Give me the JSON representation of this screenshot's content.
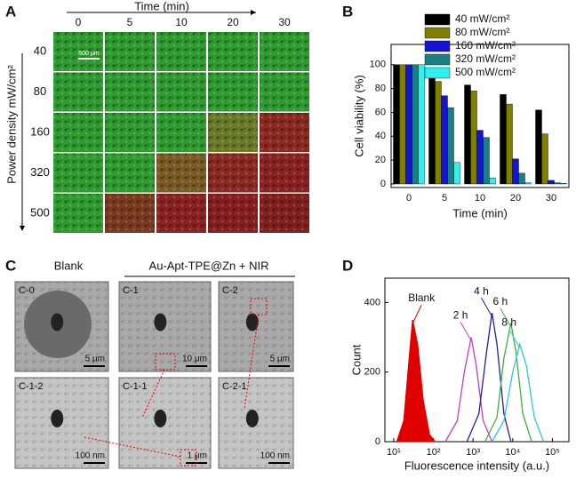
{
  "panels": {
    "A": {
      "letter": "A",
      "title": "Time (min)",
      "columns": [
        "0",
        "5",
        "10",
        "20",
        "30"
      ],
      "rows": [
        "40",
        "80",
        "160",
        "320",
        "500"
      ],
      "y_label": "Power density mW/cm²",
      "scale_bar": "500 μm",
      "cell_colors": [
        [
          "#2f9a2f",
          "#2f9a2f",
          "#2f9a2f",
          "#2f9a2f",
          "#2f9a2f"
        ],
        [
          "#2f9a2f",
          "#2f9a2f",
          "#2f9a2f",
          "#2f9a2f",
          "#2f9a2f"
        ],
        [
          "#2f9a2f",
          "#2f9a2f",
          "#2f9a2f",
          "#6a7a28",
          "#8a2a20"
        ],
        [
          "#2f9a2f",
          "#2f9a2f",
          "#7a5a25",
          "#8a2a22",
          "#8a2222"
        ],
        [
          "#2f9a2f",
          "#7a3a22",
          "#8a2222",
          "#862020",
          "#802020"
        ]
      ]
    },
    "B": {
      "letter": "B"
    },
    "C": {
      "letter": "C",
      "group_blank": "Blank",
      "group_treated": "Au-Apt-TPE@Zn + NIR",
      "images": [
        {
          "label": "C-0",
          "scale": "5 μm"
        },
        {
          "label": "C-1",
          "scale": "10 μm"
        },
        {
          "label": "C-2",
          "scale": "5 μm"
        },
        {
          "label": "C-1-2",
          "scale": "100 nm"
        },
        {
          "label": "C-1-1",
          "scale": "1 μm"
        },
        {
          "label": "C-2-1",
          "scale": "100 nm"
        }
      ]
    },
    "D": {
      "letter": "D"
    }
  },
  "chart_data": [
    {
      "type": "bar",
      "x_label": "Time (min)",
      "y_label": "Cell viability (%)",
      "categories": [
        "0",
        "5",
        "10",
        "20",
        "30"
      ],
      "ylim": [
        -3,
        117
      ],
      "yticks": [
        0,
        20,
        40,
        60,
        80,
        100
      ],
      "series": [
        {
          "name": "40 mW/cm²",
          "color": "#000000",
          "values": [
            100,
            91,
            83,
            75,
            62
          ]
        },
        {
          "name": "80 mW/cm²",
          "color": "#808000",
          "values": [
            100,
            86,
            78,
            67,
            42
          ]
        },
        {
          "name": "160 mW/cm²",
          "color": "#1414d2",
          "values": [
            100,
            74,
            45,
            21,
            3
          ]
        },
        {
          "name": "320 mW/cm²",
          "color": "#188080",
          "values": [
            100,
            64,
            39,
            9,
            1
          ]
        },
        {
          "name": "500 mW/cm²",
          "color": "#30f0f0",
          "values": [
            100,
            18,
            5,
            1,
            0.5
          ]
        }
      ]
    },
    {
      "type": "line",
      "x_label": "Fluorescence intensity (a.u.)",
      "y_label": "Count",
      "xscale": "log",
      "xlim": [
        6,
        260000
      ],
      "ylim": [
        0,
        470
      ],
      "xticks": [
        {
          "value": 10,
          "label": "10¹"
        },
        {
          "value": 100,
          "label": "10²"
        },
        {
          "value": 1000,
          "label": "10³"
        },
        {
          "value": 10000,
          "label": "10⁴"
        },
        {
          "value": 100000,
          "label": "10⁵"
        }
      ],
      "yticks": [
        0,
        200,
        400
      ],
      "series": [
        {
          "name": "Blank",
          "color": "#e00000",
          "filled": true,
          "x": [
            12,
            18,
            25,
            30,
            40,
            55,
            80,
            110
          ],
          "values": [
            0,
            60,
            250,
            350,
            280,
            120,
            20,
            0
          ]
        },
        {
          "name": "2 h",
          "color": "#c040c0",
          "x": [
            200,
            400,
            600,
            900,
            1200,
            1800,
            3000
          ],
          "values": [
            0,
            60,
            200,
            300,
            220,
            60,
            0
          ]
        },
        {
          "name": "4 h",
          "color": "#2020a0",
          "x": [
            700,
            1400,
            2200,
            3000,
            4000,
            6000,
            9000
          ],
          "values": [
            0,
            80,
            260,
            370,
            280,
            80,
            0
          ]
        },
        {
          "name": "6 h",
          "color": "#40b040",
          "x": [
            2000,
            4000,
            6000,
            9000,
            12000,
            18000,
            30000
          ],
          "values": [
            0,
            70,
            240,
            340,
            260,
            80,
            0
          ]
        },
        {
          "name": "8 h",
          "color": "#30c8c8",
          "x": [
            3000,
            6000,
            10000,
            15000,
            22000,
            35000,
            60000
          ],
          "values": [
            0,
            60,
            200,
            280,
            220,
            70,
            0
          ]
        }
      ]
    }
  ]
}
